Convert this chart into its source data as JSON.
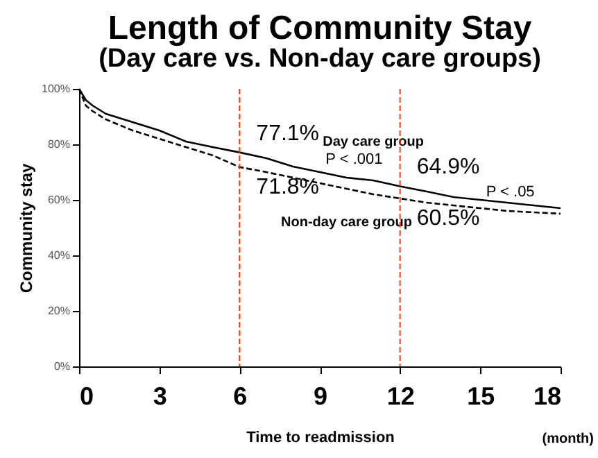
{
  "chart_data": {
    "type": "line",
    "title": "Length of Community Stay",
    "subtitle": "(Day care vs. Non-day care groups)",
    "xlabel": "Time to readmission",
    "ylabel": "Community stay",
    "x": [
      0,
      0.25,
      0.5,
      1,
      2,
      3,
      4,
      5,
      6,
      7,
      8,
      9,
      10,
      11,
      12,
      13,
      14,
      15,
      16,
      17,
      18
    ],
    "series": [
      {
        "name": "Day care group",
        "color": "#000000",
        "line_style": "solid",
        "values": [
          100,
          96,
          94,
          91,
          88,
          85,
          81,
          79,
          77.1,
          75,
          72,
          70,
          68,
          67,
          64.9,
          63,
          61,
          60,
          59,
          58,
          57
        ],
        "value_labels": [
          null,
          null,
          null,
          null,
          null,
          null,
          null,
          null,
          "77.1%",
          null,
          null,
          null,
          null,
          null,
          "64.9%",
          null,
          null,
          null,
          null,
          null,
          null
        ]
      },
      {
        "name": "Non-day care group",
        "color": "#000000",
        "line_style": "dashed",
        "values": [
          100,
          94,
          92,
          89,
          85,
          82,
          79,
          76,
          71.8,
          70,
          68,
          66,
          64,
          62,
          60.5,
          59,
          58,
          57,
          56,
          55.5,
          55
        ],
        "value_labels": [
          null,
          null,
          null,
          null,
          null,
          null,
          null,
          null,
          "71.8%",
          null,
          null,
          null,
          null,
          null,
          "60.5%",
          null,
          null,
          null,
          null,
          null,
          null
        ]
      }
    ],
    "xlim": [
      0,
      18
    ],
    "xticks": [
      0,
      3,
      6,
      9,
      12,
      15,
      18
    ],
    "ylim": [
      0,
      100
    ],
    "yticks": [
      {
        "value": 0,
        "label": "0%"
      },
      {
        "value": 20,
        "label": "20%"
      },
      {
        "value": 40,
        "label": "40%"
      },
      {
        "value": 60,
        "label": "60%"
      },
      {
        "value": 80,
        "label": "80%"
      },
      {
        "value": 100,
        "label": "100%"
      }
    ],
    "ref_lines": [
      {
        "axis": "x",
        "value": 6,
        "color": "#ff3300",
        "line_style": "dashed"
      },
      {
        "axis": "x",
        "value": 12,
        "color": "#ff3300",
        "line_style": "dashed"
      }
    ],
    "annotations": [
      "P < .001",
      "P < .05",
      "(month)"
    ],
    "legend": false,
    "grid": false
  }
}
